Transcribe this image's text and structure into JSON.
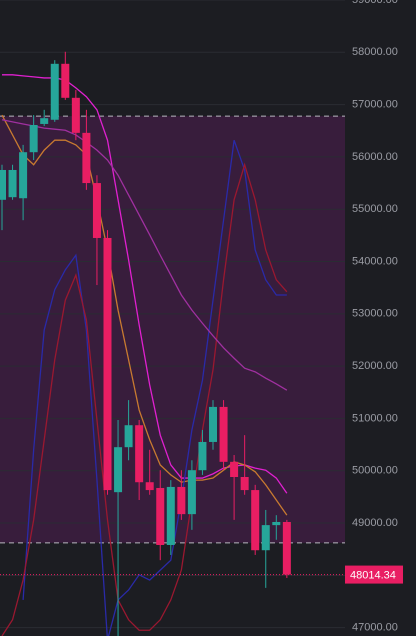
{
  "chart_data": {
    "type": "candlestick",
    "categories": [
      null,
      null,
      null,
      null,
      null,
      null,
      null,
      null,
      null,
      null,
      null,
      null,
      null,
      null,
      null,
      null,
      null,
      null,
      null,
      null,
      null,
      null,
      null,
      null,
      null,
      null,
      null,
      null
    ],
    "open": [
      55180,
      55230,
      55210,
      56090,
      56630,
      56710,
      57780,
      57130,
      56460,
      55500,
      54450,
      49590,
      50450,
      50870,
      49780,
      49670,
      48580,
      49690,
      49170,
      50010,
      50550,
      51220,
      50170,
      49880,
      49630,
      48480,
      48960,
      49020
    ],
    "high": [
      55850,
      55850,
      56230,
      56800,
      56900,
      57850,
      58010,
      57280,
      56900,
      55650,
      54600,
      50970,
      51350,
      50970,
      50400,
      50010,
      49820,
      50010,
      50200,
      50780,
      51350,
      51350,
      50300,
      50680,
      49730,
      49250,
      49150,
      49060
    ],
    "low": [
      54600,
      55180,
      54790,
      55940,
      56590,
      56670,
      57090,
      56320,
      55370,
      53550,
      49540,
      46840,
      50200,
      49440,
      49540,
      48290,
      48390,
      49060,
      48870,
      49920,
      50400,
      50010,
      49060,
      49540,
      48390,
      47760,
      48680,
      47950
    ],
    "close": [
      55750,
      55750,
      56090,
      56610,
      56740,
      57780,
      57130,
      56460,
      55500,
      54450,
      49630,
      50450,
      50870,
      49780,
      49630,
      48580,
      49690,
      49170,
      50010,
      50550,
      51220,
      50170,
      49880,
      49630,
      48480,
      48960,
      49020,
      48014.34
    ],
    "up_color": "#26a69a",
    "down_color": "#e91e63",
    "series": [
      {
        "color": "#e020d0",
        "values": [
          57570,
          57570,
          57550,
          57530,
          57510,
          57510,
          57470,
          57320,
          57150,
          56900,
          56320,
          55180,
          54030,
          52790,
          51640,
          50680,
          50110,
          49860,
          49860,
          49860,
          49940,
          50050,
          50090,
          50110,
          50050,
          50010,
          49860,
          49570
        ]
      },
      {
        "color": "#c87a30",
        "values": [
          56800,
          56420,
          56040,
          55850,
          56130,
          56320,
          56320,
          56230,
          56040,
          55180,
          54220,
          53070,
          52120,
          51160,
          50590,
          50110,
          49920,
          49780,
          49820,
          49820,
          49860,
          50010,
          50170,
          50110,
          49980,
          49730,
          49440,
          49150
        ]
      },
      {
        "color": "#2a2aa8",
        "values": [
          null,
          null,
          47530,
          50400,
          52690,
          53460,
          53840,
          54120,
          52690,
          49820,
          46760,
          47530,
          47720,
          48010,
          47910,
          48100,
          48290,
          49440,
          50780,
          51730,
          53260,
          54790,
          56320,
          55750,
          54220,
          53650,
          53360,
          53360
        ]
      },
      {
        "color": "#9a1830",
        "values": [
          46840,
          47150,
          47910,
          49060,
          50590,
          52120,
          53260,
          53740,
          52880,
          50970,
          49060,
          47530,
          47150,
          46950,
          46950,
          47150,
          47530,
          48100,
          49440,
          50780,
          51930,
          53650,
          55180,
          55850,
          55180,
          54220,
          53650,
          53420
        ]
      },
      {
        "color": "#a030a0",
        "values": [
          56710,
          56670,
          56630,
          56590,
          56550,
          56530,
          56510,
          56420,
          56280,
          56130,
          55940,
          55650,
          55270,
          54890,
          54510,
          54120,
          53740,
          53360,
          53070,
          52820,
          52580,
          52350,
          52150,
          51960,
          51890,
          51770,
          51660,
          51540
        ]
      }
    ],
    "zone": [
      48620,
      56780
    ],
    "last_price": 48014.34,
    "ylim": [
      46840,
      59000
    ],
    "yticks": [
      {
        "value": 59000,
        "label": "59000.00"
      },
      {
        "value": 58000,
        "label": "58000.00"
      },
      {
        "value": 57000,
        "label": "57000.00"
      },
      {
        "value": 56000,
        "label": "56000.00"
      },
      {
        "value": 55000,
        "label": "55000.00"
      },
      {
        "value": 54000,
        "label": "54000.00"
      },
      {
        "value": 53000,
        "label": "53000.00"
      },
      {
        "value": 52000,
        "label": "52000.00"
      },
      {
        "value": 51000,
        "label": "51000.00"
      },
      {
        "value": 50000,
        "label": "50000.00"
      },
      {
        "value": 49000,
        "label": "49000.00"
      },
      {
        "value": 48000,
        "label": "48000.00"
      },
      {
        "value": 47000,
        "label": "47000.00"
      }
    ],
    "grid": true
  }
}
